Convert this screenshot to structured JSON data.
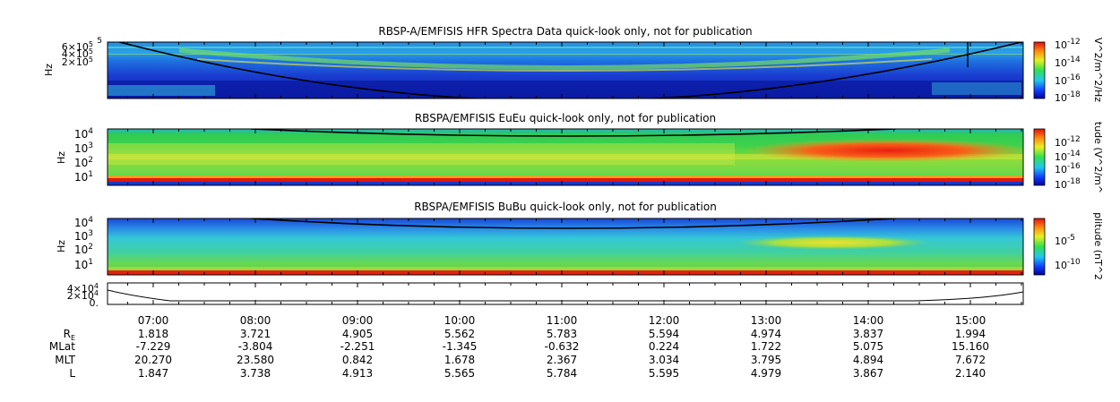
{
  "chart_data": [
    {
      "type": "heatmap",
      "title": "RBSP-A/EMFISIS  HFR Spectra Data quick-look only, not for publication",
      "ylabel": "Hz",
      "y_ticks": [
        {
          "text": "6×10",
          "sup": "5"
        },
        {
          "text": "4×10",
          "sup": "5"
        },
        {
          "text": "2×10",
          "sup": "5"
        }
      ],
      "y_top_label": "5",
      "colorbar_label": "V^2/m^2/Hz",
      "colorbar_ticks": [
        {
          "text": "10",
          "sup": "-12"
        },
        {
          "text": "10",
          "sup": "-14"
        },
        {
          "text": "10",
          "sup": "-16"
        },
        {
          "text": "10",
          "sup": "-18"
        }
      ]
    },
    {
      "type": "heatmap",
      "title": "RBSPA/EMFISIS  EuEu quick-look only, not for publication",
      "ylabel": "Hz",
      "y_ticks": [
        {
          "text": "10",
          "sup": "4"
        },
        {
          "text": "10",
          "sup": "3"
        },
        {
          "text": "10",
          "sup": "2"
        },
        {
          "text": "10",
          "sup": "1"
        }
      ],
      "colorbar_label": "tude (V^2/m^",
      "colorbar_ticks": [
        {
          "text": "10",
          "sup": "-12"
        },
        {
          "text": "10",
          "sup": "-14"
        },
        {
          "text": "10",
          "sup": "-16"
        },
        {
          "text": "10",
          "sup": "-18"
        }
      ]
    },
    {
      "type": "heatmap",
      "title": "RBSPA/EMFISIS  BuBu quick-look only, not for publication",
      "ylabel": "Hz",
      "y_ticks": [
        {
          "text": "10",
          "sup": "4"
        },
        {
          "text": "10",
          "sup": "3"
        },
        {
          "text": "10",
          "sup": "2"
        },
        {
          "text": "10",
          "sup": "1"
        }
      ],
      "colorbar_label": "plitude (nT^2",
      "colorbar_ticks": [
        {
          "text": "10",
          "sup": "-5"
        },
        {
          "text": "10",
          "sup": "-10"
        }
      ]
    },
    {
      "type": "line",
      "y_ticks": [
        {
          "text": "4×10",
          "sup": "4"
        },
        {
          "text": "2×10",
          "sup": "4"
        },
        {
          "text": "0.",
          "sup": ""
        }
      ]
    }
  ],
  "time_axis": {
    "labels": [
      "07:00",
      "08:00",
      "09:00",
      "10:00",
      "11:00",
      "12:00",
      "13:00",
      "14:00",
      "15:00"
    ]
  },
  "ephemeris": {
    "rows": [
      {
        "label": "R",
        "sub": "E",
        "values": [
          "1.818",
          "3.721",
          "4.905",
          "5.562",
          "5.783",
          "5.594",
          "4.974",
          "3.837",
          "1.994"
        ]
      },
      {
        "label": "MLat",
        "sub": "",
        "values": [
          "-7.229",
          "-3.804",
          "-2.251",
          "-1.345",
          "-0.632",
          "0.224",
          "1.722",
          "5.075",
          "15.160"
        ]
      },
      {
        "label": "MLT",
        "sub": "",
        "values": [
          "20.270",
          "23.580",
          "0.842",
          "1.678",
          "2.367",
          "3.034",
          "3.795",
          "4.894",
          "7.672"
        ]
      },
      {
        "label": "L",
        "sub": "",
        "values": [
          "1.847",
          "3.738",
          "4.913",
          "5.565",
          "5.784",
          "5.595",
          "4.979",
          "3.867",
          "2.140"
        ]
      }
    ]
  },
  "colors": {
    "dark_blue": "#0a14a0",
    "blue": "#1e46dc",
    "light_blue": "#28a0e6",
    "cyan": "#3cdcdc",
    "green": "#32c850",
    "yellow_green": "#b4e632",
    "yellow": "#ffe628",
    "orange": "#ff8c1e",
    "red": "#e61e1e"
  }
}
